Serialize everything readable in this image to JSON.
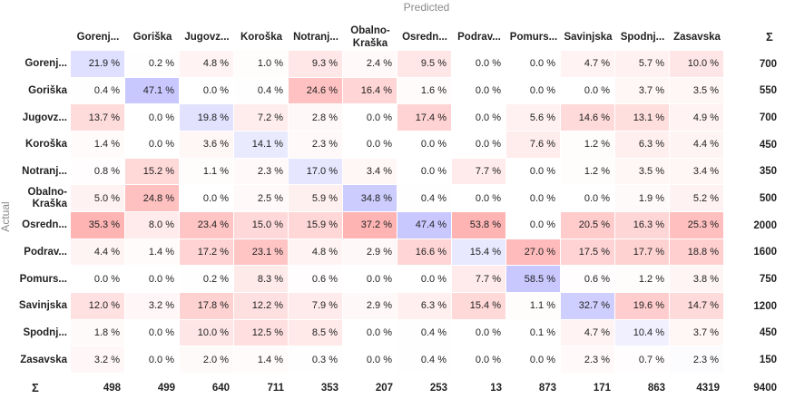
{
  "labels": {
    "predicted": "Predicted",
    "actual": "Actual",
    "sum_symbol": "Σ"
  },
  "colors": {
    "red": "#e07a7a",
    "blue": "#8c8cf0",
    "grid_border": "#d8d8d8"
  },
  "chart_data": {
    "type": "heatmap",
    "columns": [
      "Gorenj...",
      "Goriška",
      "Jugovz...",
      "Koroška",
      "Notranj...",
      "Obalno-\nKraška",
      "Osredn...",
      "Podrav...",
      "Pomurs...",
      "Savinjska",
      "Spodnj...",
      "Zasavska"
    ],
    "rows": [
      "Gorenj...",
      "Goriška",
      "Jugovz...",
      "Koroška",
      "Notranj...",
      "Obalno-\nKraška",
      "Osredn...",
      "Podrav...",
      "Pomurs...",
      "Savinjska",
      "Spodnj...",
      "Zasavska"
    ],
    "values": [
      [
        "21.9 %",
        "0.2 %",
        "4.8 %",
        "1.0 %",
        "9.3 %",
        "2.4 %",
        "9.5 %",
        "0.0 %",
        "0.0 %",
        "4.7 %",
        "5.7 %",
        "10.0 %"
      ],
      [
        "0.4 %",
        "47.1 %",
        "0.0 %",
        "0.4 %",
        "24.6 %",
        "16.4 %",
        "1.6 %",
        "0.0 %",
        "0.0 %",
        "0.0 %",
        "3.7 %",
        "3.5 %"
      ],
      [
        "13.7 %",
        "0.0 %",
        "19.8 %",
        "7.2 %",
        "2.8 %",
        "0.0 %",
        "17.4 %",
        "0.0 %",
        "5.6 %",
        "14.6 %",
        "13.1 %",
        "4.9 %"
      ],
      [
        "1.4 %",
        "0.0 %",
        "3.6 %",
        "14.1 %",
        "2.3 %",
        "0.0 %",
        "0.0 %",
        "0.0 %",
        "7.6 %",
        "1.2 %",
        "6.3 %",
        "4.4 %"
      ],
      [
        "0.8 %",
        "15.2 %",
        "1.1 %",
        "2.3 %",
        "17.0 %",
        "3.4 %",
        "0.0 %",
        "7.7 %",
        "0.0 %",
        "1.2 %",
        "3.5 %",
        "3.4 %"
      ],
      [
        "5.0 %",
        "24.8 %",
        "0.0 %",
        "2.5 %",
        "5.9 %",
        "34.8 %",
        "0.4 %",
        "0.0 %",
        "0.0 %",
        "0.0 %",
        "1.9 %",
        "5.2 %"
      ],
      [
        "35.3 %",
        "8.0 %",
        "23.4 %",
        "15.0 %",
        "15.9 %",
        "37.2 %",
        "47.4 %",
        "53.8 %",
        "0.0 %",
        "20.5 %",
        "16.3 %",
        "25.3 %"
      ],
      [
        "4.4 %",
        "1.4 %",
        "17.2 %",
        "23.1 %",
        "4.8 %",
        "2.9 %",
        "16.6 %",
        "15.4 %",
        "27.0 %",
        "17.5 %",
        "17.7 %",
        "18.8 %"
      ],
      [
        "0.0 %",
        "0.0 %",
        "0.2 %",
        "8.3 %",
        "0.6 %",
        "0.0 %",
        "0.0 %",
        "7.7 %",
        "58.5 %",
        "0.6 %",
        "1.2 %",
        "3.8 %"
      ],
      [
        "12.0 %",
        "3.2 %",
        "17.8 %",
        "12.2 %",
        "7.9 %",
        "2.9 %",
        "6.3 %",
        "15.4 %",
        "1.1 %",
        "32.7 %",
        "19.6 %",
        "14.7 %"
      ],
      [
        "1.8 %",
        "0.0 %",
        "10.0 %",
        "12.5 %",
        "8.5 %",
        "0.0 %",
        "0.4 %",
        "0.0 %",
        "0.1 %",
        "4.7 %",
        "10.4 %",
        "3.7 %"
      ],
      [
        "3.2 %",
        "0.0 %",
        "2.0 %",
        "1.4 %",
        "0.3 %",
        "0.0 %",
        "0.4 %",
        "0.0 %",
        "0.0 %",
        "2.3 %",
        "0.7 %",
        "2.3 %"
      ]
    ],
    "row_sums": [
      "700",
      "550",
      "700",
      "450",
      "350",
      "500",
      "2000",
      "1600",
      "750",
      "1200",
      "450",
      "150"
    ],
    "col_sums": [
      "498",
      "499",
      "640",
      "711",
      "353",
      "207",
      "253",
      "13",
      "873",
      "171",
      "863",
      "4319"
    ],
    "total": "9400"
  }
}
